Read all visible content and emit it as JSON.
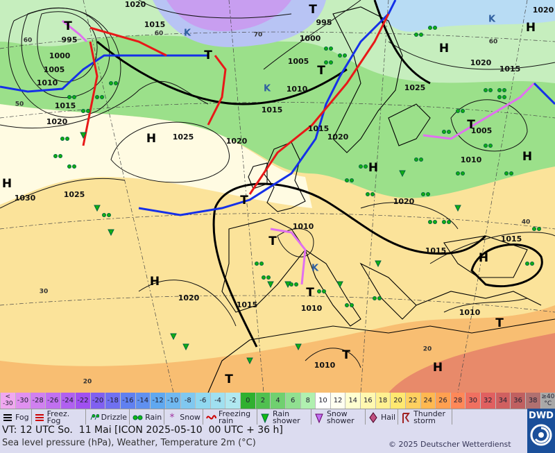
{
  "map": {
    "isobar_labels": [
      1020,
      1015,
      995,
      1000,
      1005,
      1010,
      1015,
      1020,
      1025,
      1020,
      1015,
      1010,
      1005,
      1000,
      995,
      1020,
      1020,
      1015,
      1025,
      1005,
      1010,
      1020,
      1010,
      1015,
      1015,
      1030,
      1025,
      1020,
      1015,
      1010,
      1010,
      1010,
      1015,
      1020
    ],
    "pressure_centers": [
      "H",
      "H",
      "H",
      "H",
      "H",
      "H",
      "H",
      "H",
      "H",
      "T",
      "T",
      "T",
      "T",
      "T",
      "T",
      "T",
      "T",
      "T",
      "T",
      "T",
      "K",
      "K",
      "K",
      "K"
    ],
    "graticule_labels": [
      60,
      60,
      70,
      60,
      50,
      40,
      30,
      20,
      20
    ]
  },
  "temperature_scale": {
    "first_cell": [
      "<",
      "-30"
    ],
    "labels": [
      -30,
      -28,
      -26,
      -24,
      -22,
      -20,
      -18,
      -16,
      -14,
      -12,
      -10,
      -8,
      -6,
      -4,
      -2,
      0,
      2,
      4,
      6,
      8,
      10,
      12,
      14,
      16,
      18,
      20,
      22,
      24,
      26,
      28,
      30,
      32,
      34,
      36,
      38
    ],
    "last_cell": [
      "≥40",
      "°C"
    ],
    "colors": [
      "#f0a8f0",
      "#e090f0",
      "#d080f0",
      "#c070f0",
      "#b060f0",
      "#a050f0",
      "#8060f0",
      "#7070f0",
      "#6080f0",
      "#6090f0",
      "#60a8f0",
      "#70b8f0",
      "#80c8f0",
      "#90d8f0",
      "#a0e0f0",
      "#b0e8f0",
      "#30b030",
      "#50c050",
      "#70d070",
      "#90e090",
      "#b0f0b0",
      "#ffffff",
      "#fffff0",
      "#ffffd0",
      "#fff8b0",
      "#fff090",
      "#ffe870",
      "#ffd060",
      "#ffb850",
      "#ffa050",
      "#ff8858",
      "#f07060",
      "#e06060",
      "#d06060",
      "#c06060",
      "#b07070",
      "#a8a8a8"
    ]
  },
  "legend": [
    "Fog",
    "Freez. Fog",
    "Drizzle",
    "Rain",
    "Snow",
    "Freezing rain",
    "Rain shower",
    "Snow shower",
    "Hail",
    "Thunder storm"
  ],
  "footer": {
    "valid_time": "VT: 12 UTC So.  11 Mai [ICON 2025-05-10  00 UTC + 36 h]",
    "description": "Sea level pressure (hPa), Weather, Temperature 2m (°C)",
    "copyright": "© 2025 Deutscher Wetterdienst",
    "logo": "DWD"
  }
}
